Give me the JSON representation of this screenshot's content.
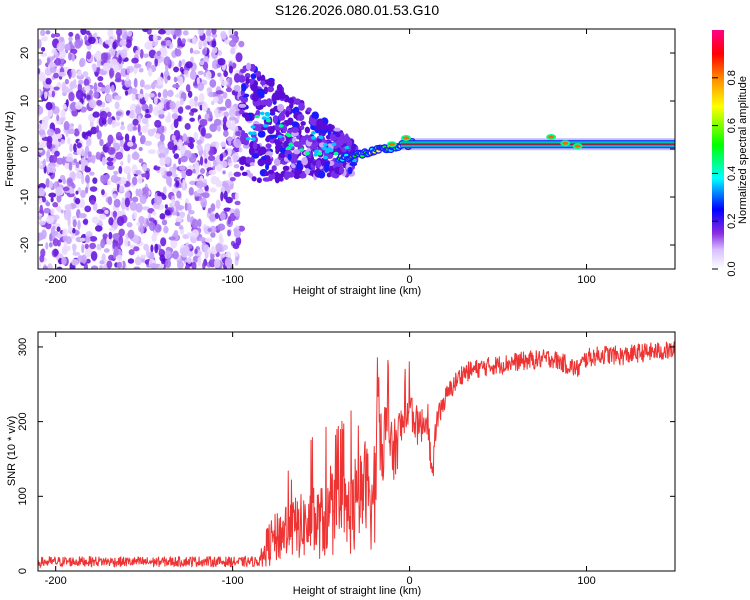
{
  "title": "S126.2026.080.01.53.G10",
  "colors": {
    "snr_line": "#ee3333",
    "scatter_low": "#e0ccff",
    "scatter_mid": "#8a2be2",
    "scatter_high": "#5a0dd6"
  },
  "chart_data": [
    {
      "type": "heatmap",
      "name": "spectrogram",
      "xlabel": "Height of straight line (km)",
      "ylabel": "Frequency (Hz)",
      "xlim": [
        -210,
        150
      ],
      "ylim": [
        -25,
        25
      ],
      "xticks": [
        -200,
        -100,
        0,
        100
      ],
      "yticks": [
        -20,
        -10,
        0,
        10,
        20
      ],
      "xtick_labels": [
        "-200",
        "-100",
        "0",
        "100"
      ],
      "ytick_labels": [
        "-20",
        "-10",
        "0",
        "10",
        "20"
      ],
      "description_regions": {
        "noise_region_x": [
          -210,
          -95
        ],
        "transition_region_x": [
          -95,
          -30
        ],
        "tone_region_x": [
          -30,
          150
        ],
        "tone_frequency_hz": 1
      },
      "colorbar": {
        "label": "Normalized spectral amplitude",
        "range": [
          0,
          1
        ],
        "ticks": [
          0.0,
          0.2,
          0.4,
          0.6,
          0.8
        ],
        "tick_labels": [
          "0.0",
          "0.2",
          "0.4",
          "0.6",
          "0.8"
        ],
        "colormap": [
          "#ffffff",
          "#8a2be2",
          "#0000ff",
          "#00ffff",
          "#00ff00",
          "#ffff00",
          "#ff8800",
          "#ff0000",
          "#ff0088"
        ]
      }
    },
    {
      "type": "line",
      "name": "snr",
      "xlabel": "Height of straight line (km)",
      "ylabel": "SNR (10 * v/v)",
      "xlim": [
        -210,
        150
      ],
      "ylim": [
        0,
        320
      ],
      "xticks": [
        -200,
        -100,
        0,
        100
      ],
      "yticks": [
        0,
        100,
        200,
        300
      ],
      "xtick_labels": [
        "-200",
        "-100",
        "0",
        "100"
      ],
      "ytick_labels": [
        "0",
        "100",
        "200",
        "300"
      ],
      "series": [
        {
          "name": "SNR",
          "x": [
            -210,
            -180,
            -150,
            -120,
            -95,
            -85,
            -80,
            -70,
            -60,
            -50,
            -40,
            -30,
            -25,
            -20,
            -18,
            -15,
            -12,
            -10,
            -5,
            0,
            5,
            10,
            13,
            15,
            20,
            25,
            30,
            40,
            60,
            80,
            95,
            100,
            110,
            120,
            130,
            140,
            150
          ],
          "y": [
            12,
            13,
            12,
            13,
            12,
            13,
            35,
            55,
            60,
            65,
            75,
            80,
            120,
            80,
            210,
            170,
            200,
            150,
            190,
            220,
            190,
            205,
            120,
            200,
            230,
            250,
            265,
            272,
            280,
            285,
            270,
            285,
            290,
            288,
            292,
            294,
            295
          ],
          "noise_amp": [
            7,
            7,
            7,
            7,
            7,
            7,
            30,
            40,
            45,
            50,
            55,
            60,
            60,
            70,
            60,
            55,
            50,
            45,
            35,
            30,
            25,
            22,
            20,
            18,
            15,
            14,
            14,
            13,
            13,
            13,
            13,
            13,
            13,
            13,
            13,
            13,
            13
          ]
        }
      ]
    }
  ]
}
